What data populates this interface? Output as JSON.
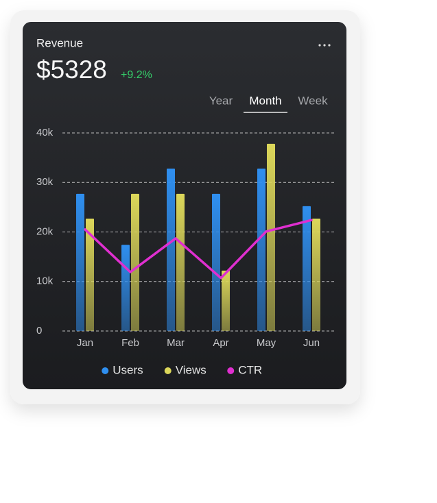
{
  "header": {
    "title": "Revenue",
    "value": "$5328",
    "change": "+9.2%"
  },
  "tabs": [
    "Year",
    "Month",
    "Week"
  ],
  "active_tab": 1,
  "chart_data": {
    "type": "bar",
    "categories": [
      "Jan",
      "Feb",
      "Mar",
      "Apr",
      "May",
      "Jun"
    ],
    "series": [
      {
        "name": "Users",
        "color": "#2f8ff0",
        "values": [
          27700,
          17400,
          32800,
          27700,
          32800,
          25200
        ]
      },
      {
        "name": "Views",
        "color": "#dcd75a",
        "values": [
          22700,
          27700,
          27700,
          12200,
          37800,
          22700
        ]
      },
      {
        "name": "CTR",
        "type": "line",
        "color": "#e02fd0",
        "values": [
          20500,
          11900,
          18700,
          10700,
          20100,
          22400
        ]
      }
    ],
    "ylim": [
      0,
      40000
    ],
    "yticks": [
      0,
      {
        "value": 10000,
        "label": "10k"
      },
      {
        "value": 20000,
        "label": "20k"
      },
      {
        "value": 30000,
        "label": "30k"
      },
      {
        "value": 40000,
        "label": "40k"
      }
    ],
    "grid": true,
    "legend": "bottom"
  }
}
